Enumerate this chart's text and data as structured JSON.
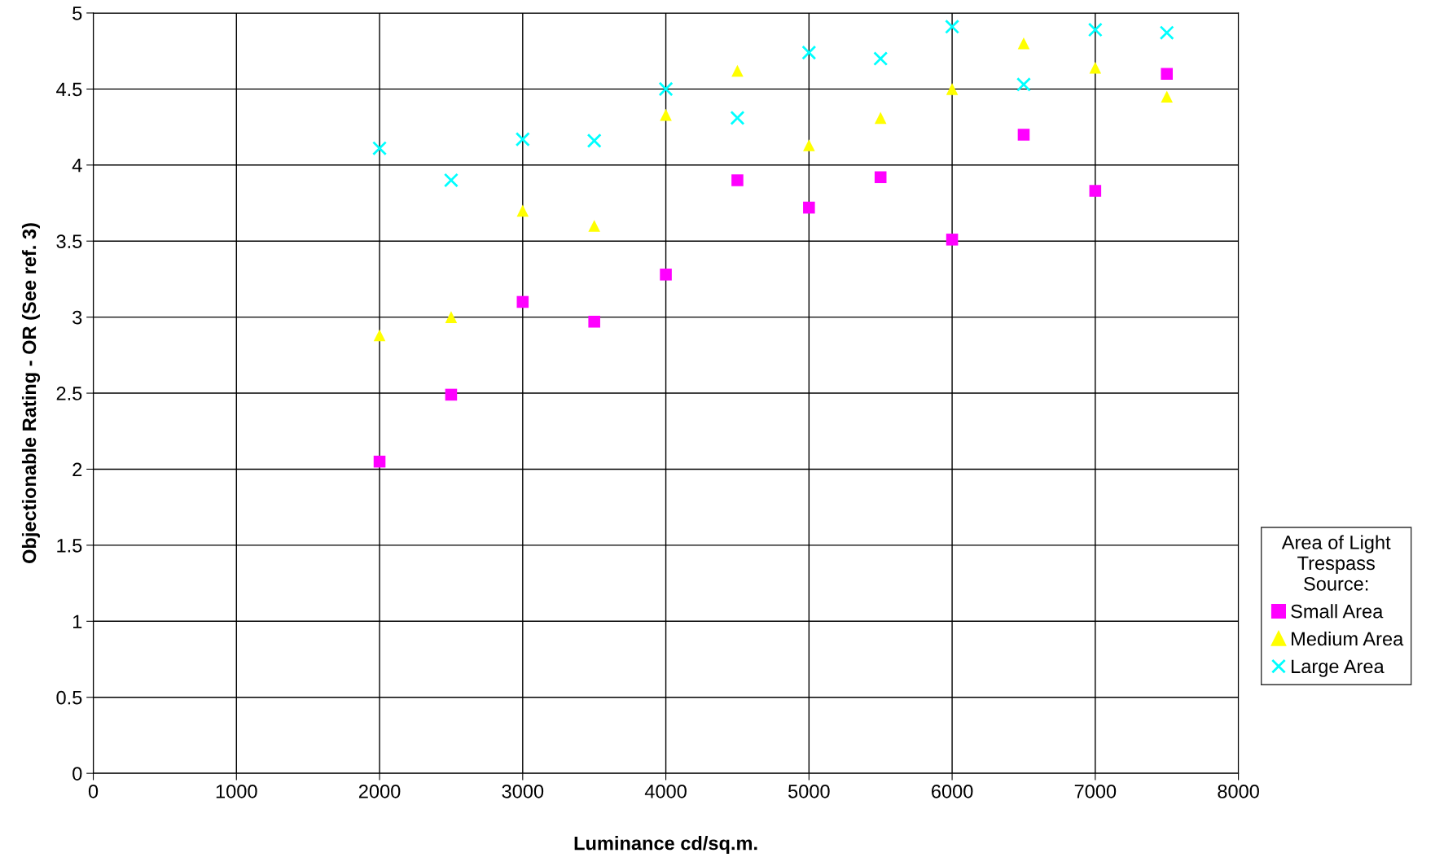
{
  "chart_data": {
    "type": "scatter",
    "xlabel": "Luminance cd/sq.m.",
    "ylabel": "Objectionable Rating - OR (See ref. 3)",
    "legend_title": "Area of Light\nTrespass\nSource:",
    "x": [
      2000,
      2500,
      3000,
      3500,
      4000,
      4500,
      5000,
      5500,
      6000,
      6500,
      7000,
      7500
    ],
    "series": [
      {
        "name": "Small Area",
        "color": "#ff00ff",
        "marker": "square",
        "values": [
          2.05,
          2.49,
          3.1,
          2.97,
          3.28,
          3.9,
          3.72,
          3.92,
          3.51,
          4.2,
          3.83,
          4.6
        ]
      },
      {
        "name": "Medium Area",
        "color": "#ffff00",
        "marker": "triangle",
        "values": [
          2.88,
          3.0,
          3.7,
          3.6,
          4.33,
          4.62,
          4.13,
          4.31,
          4.5,
          4.8,
          4.64,
          4.45
        ]
      },
      {
        "name": "Large Area",
        "color": "#00ffff",
        "marker": "cross",
        "values": [
          4.11,
          3.9,
          4.17,
          4.16,
          4.5,
          4.31,
          4.74,
          4.7,
          4.91,
          4.53,
          4.89,
          4.87
        ]
      }
    ],
    "xlim": [
      0,
      8000
    ],
    "xticks": [
      0,
      1000,
      2000,
      3000,
      4000,
      5000,
      6000,
      7000,
      8000
    ],
    "ylim": [
      0,
      5
    ],
    "yticks": [
      0,
      {
        "value": 0.5,
        "label": "0.5"
      },
      1,
      {
        "value": 1.5,
        "label": "1.5"
      },
      2,
      {
        "value": 2.5,
        "label": "2.5"
      },
      3,
      {
        "value": 3.5,
        "label": "3.5"
      },
      4,
      {
        "value": 4.5,
        "label": "4.5"
      },
      5
    ],
    "grid": true,
    "legend": "right"
  }
}
